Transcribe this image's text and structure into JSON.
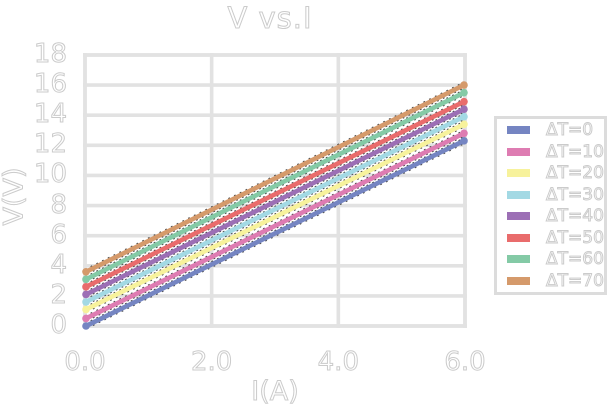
{
  "chart_data": {
    "type": "line",
    "title": "V vs.I",
    "xlabel": "I(A)",
    "ylabel": "V(V)",
    "x": [
      0,
      6
    ],
    "series": [
      {
        "name": "ΔT=0",
        "color": "#7585c2",
        "values": [
          0.0,
          12.3
        ]
      },
      {
        "name": "ΔT=10",
        "color": "#de7cb2",
        "values": [
          0.5,
          12.8
        ]
      },
      {
        "name": "ΔT=20",
        "color": "#f7f29c",
        "values": [
          1.1,
          13.4
        ]
      },
      {
        "name": "ΔT=30",
        "color": "#a3d9e4",
        "values": [
          1.6,
          13.9
        ]
      },
      {
        "name": "ΔT=40",
        "color": "#9c6fb5",
        "values": [
          2.1,
          14.4
        ]
      },
      {
        "name": "ΔT=50",
        "color": "#e96c6c",
        "values": [
          2.6,
          14.9
        ]
      },
      {
        "name": "ΔT=60",
        "color": "#84caa6",
        "values": [
          3.1,
          15.5
        ]
      },
      {
        "name": "ΔT=70",
        "color": "#d59a6b",
        "values": [
          3.6,
          16.0
        ]
      }
    ],
    "xticks": [
      "0.0",
      "2.0",
      "4.0",
      "6.0"
    ],
    "xtick_values": [
      0,
      2,
      4,
      6
    ],
    "yticks": [
      "0",
      "2",
      "4",
      "6",
      "8",
      "10",
      "12",
      "14",
      "16",
      "18"
    ],
    "ytick_values": [
      0,
      2,
      4,
      6,
      8,
      10,
      12,
      14,
      16,
      18
    ],
    "xlim": [
      0,
      6
    ],
    "ylim": [
      0,
      18
    ],
    "grid": true,
    "legend_position": "right"
  },
  "styles": {
    "background": "#ffffff",
    "grid_color": "#e2e2e2",
    "frame_color": "#e2e2e2",
    "outline_text_color": "#cbcbcb",
    "trendline_color": "#2f2f2f",
    "legend_border_color": "#dcdcdc"
  }
}
